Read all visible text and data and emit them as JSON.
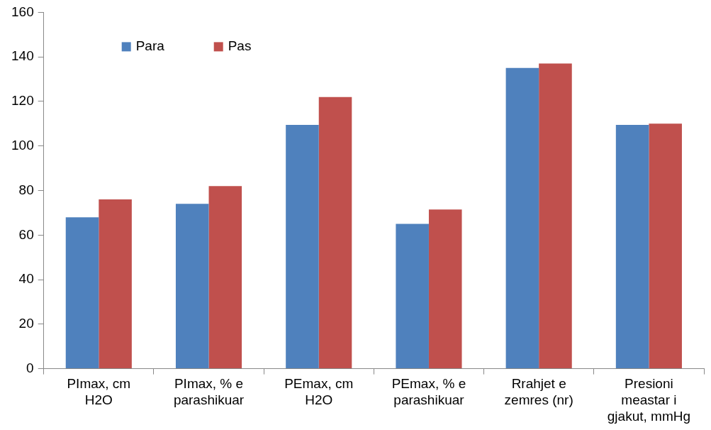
{
  "chart_data": {
    "type": "bar",
    "categories": [
      "PImax, cm H2O",
      "PImax, % e parashikuar",
      "PEmax, cm H2O",
      "PEmax, % e parashikuar",
      "Rrahjet e zemres (nr)",
      "Presioni meastar i gjakut, mmHg"
    ],
    "series": [
      {
        "name": "Para",
        "color": "#4f81bd",
        "values": [
          68,
          74,
          109.5,
          65,
          135,
          109.5
        ]
      },
      {
        "name": "Pas",
        "color": "#c0504d",
        "values": [
          76,
          82,
          122,
          71.5,
          137,
          110
        ]
      }
    ],
    "ylim": [
      0,
      160
    ],
    "yticks": [
      0,
      20,
      40,
      60,
      80,
      100,
      120,
      140,
      160
    ],
    "grid": false,
    "legend": "top left"
  }
}
